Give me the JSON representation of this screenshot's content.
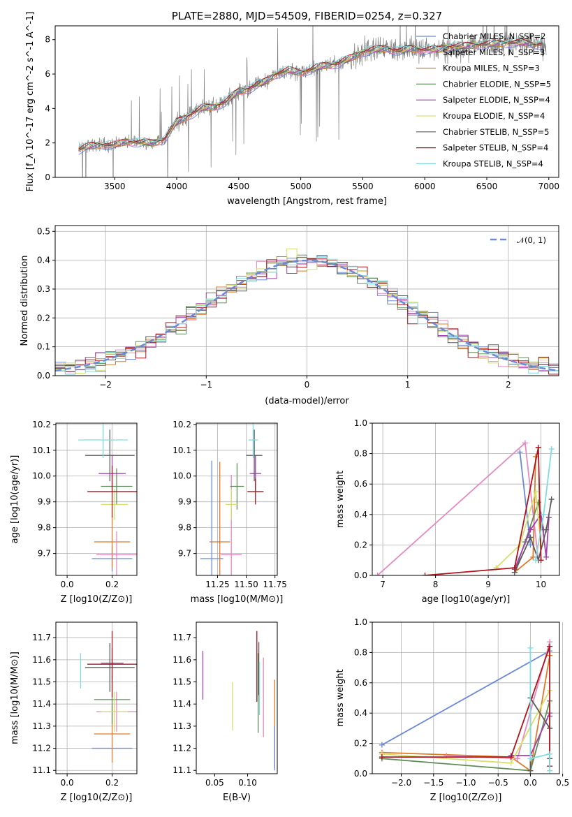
{
  "colors": [
    "#6a8ad8",
    "#e07a28",
    "#b8862e",
    "#5e8e5a",
    "#a43fb0",
    "#d6e06a",
    "#5b5b5b",
    "#b0141c",
    "#7fdde0",
    "#808080",
    "#e58ac0"
  ],
  "chart_data": [
    {
      "id": "spectrum",
      "type": "line",
      "title": "PLATE=2880, MJD=54509, FIBERID=0254, z=0.327",
      "xlabel": "wavelength [Angstrom, rest frame]",
      "ylabel": "Flux [f_λ 10^-17 erg cm^-2 s^-1 A^-1]",
      "xlim": [
        3020,
        7080
      ],
      "ylim": [
        0,
        8.8
      ],
      "xticks": [
        3500,
        4000,
        4500,
        5000,
        5500,
        6000,
        6500,
        7000
      ],
      "yticks": [
        0,
        2,
        4,
        6,
        8
      ],
      "data_color": "#808080",
      "model_anchors": {
        "x": [
          3210,
          3300,
          3400,
          3500,
          3600,
          3700,
          3800,
          3900,
          4000,
          4100,
          4200,
          4300,
          4400,
          4500,
          4600,
          4700,
          4800,
          4900,
          5000,
          5100,
          5200,
          5300,
          5400,
          5500,
          5600,
          5700,
          5800,
          5900,
          6000,
          6100,
          6200,
          6300,
          6400,
          6500,
          6600,
          6700,
          6800,
          6900
        ],
        "y": [
          1.6,
          1.8,
          1.9,
          1.85,
          2.1,
          2.0,
          2.0,
          2.2,
          3.2,
          3.6,
          4.0,
          4.1,
          4.4,
          5.0,
          5.2,
          5.5,
          6.0,
          6.2,
          6.1,
          6.3,
          6.5,
          6.6,
          6.9,
          7.3,
          7.4,
          7.5,
          7.3,
          7.5,
          7.4,
          7.4,
          7.6,
          7.6,
          7.7,
          7.7,
          7.8,
          7.8,
          7.8,
          7.7
        ]
      },
      "legend": [
        {
          "label": "Chabrier MILES, N_SSP=2",
          "color": "#6a8ad8"
        },
        {
          "label": "Salpeter MILES, N_SSP=3",
          "color": "#e58ac0"
        },
        {
          "label": "Kroupa MILES, N_SSP=3",
          "color": "#e07a28"
        },
        {
          "label": "Chabrier ELODIE, N_SSP=5",
          "color": "#5e8e5a"
        },
        {
          "label": "Salpeter ELODIE, N_SSP=4",
          "color": "#a43fb0"
        },
        {
          "label": "Kroupa ELODIE, N_SSP=4",
          "color": "#d6e06a"
        },
        {
          "label": "Chabrier STELIB, N_SSP=5",
          "color": "#5b5b5b"
        },
        {
          "label": "Salpeter STELIB, N_SSP=4",
          "color": "#b0141c"
        },
        {
          "label": "Kroupa STELIB, N_SSP=4",
          "color": "#7fdde0"
        }
      ]
    },
    {
      "id": "residuals",
      "type": "line",
      "xlabel": "(data-model)/error",
      "ylabel": "Normed distribution",
      "xlim": [
        -2.5,
        2.5
      ],
      "ylim": [
        0,
        0.52
      ],
      "xticks": [
        -2,
        -1,
        0,
        1,
        2
      ],
      "yticks": [
        0.0,
        0.1,
        0.2,
        0.3,
        0.4,
        0.5
      ],
      "legend_label": "𝒩(0, 1)",
      "gaussian_color": "#6a8ad8",
      "bin_width": 0.1
    },
    {
      "id": "age_vs_Z",
      "type": "scatter",
      "xlabel": "Z [log10(Z/Z⊙)]",
      "ylabel": "age  [log10(age/yr)]",
      "xlim": [
        -0.05,
        0.31
      ],
      "ylim": [
        9.615,
        10.205
      ],
      "xticks": [
        0.0,
        0.2
      ],
      "yticks": [
        9.7,
        9.8,
        9.9,
        10.0,
        10.1,
        10.2
      ],
      "points": [
        {
          "x": 0.2,
          "y": 9.68,
          "xerr": 0.09,
          "yerr": 0.05,
          "color": "#6a8ad8"
        },
        {
          "x": 0.2,
          "y": 9.745,
          "xerr": 0.08,
          "yerr": 0.1,
          "color": "#e07a28"
        },
        {
          "x": 0.22,
          "y": 9.695,
          "xerr": 0.09,
          "yerr": 0.09,
          "color": "#e58ac0"
        },
        {
          "x": 0.22,
          "y": 9.96,
          "xerr": 0.07,
          "yerr": 0.07,
          "color": "#5e8e5a"
        },
        {
          "x": 0.2,
          "y": 10.01,
          "xerr": 0.06,
          "yerr": 0.07,
          "color": "#a43fb0"
        },
        {
          "x": 0.21,
          "y": 9.89,
          "xerr": 0.06,
          "yerr": 0.06,
          "color": "#d6e06a"
        },
        {
          "x": 0.19,
          "y": 10.08,
          "xerr": 0.11,
          "yerr": 0.1,
          "color": "#5b5b5b"
        },
        {
          "x": 0.2,
          "y": 9.94,
          "xerr": 0.11,
          "yerr": 0.1,
          "color": "#b0141c"
        },
        {
          "x": 0.16,
          "y": 10.14,
          "xerr": 0.11,
          "yerr": 0.07,
          "color": "#7fdde0"
        }
      ]
    },
    {
      "id": "age_vs_mass",
      "type": "scatter",
      "xlabel": "mass [log10(M/M⊙)]",
      "xlim": [
        11.065,
        11.77
      ],
      "ylim": [
        9.615,
        10.205
      ],
      "xticks": [
        11.25,
        11.5,
        11.75
      ],
      "yticks": [
        9.7,
        9.8,
        9.9,
        10.0,
        10.1,
        10.2
      ],
      "points": [
        {
          "x": 11.2,
          "y": 9.68,
          "xerr": 0.1,
          "yerr": 0.38,
          "color": "#6a8ad8"
        },
        {
          "x": 11.27,
          "y": 9.745,
          "xerr": 0.09,
          "yerr": 0.31,
          "color": "#e07a28"
        },
        {
          "x": 11.37,
          "y": 9.695,
          "xerr": 0.09,
          "yerr": 0.31,
          "color": "#e58ac0"
        },
        {
          "x": 11.42,
          "y": 9.96,
          "xerr": 0.06,
          "yerr": 0.09,
          "color": "#5e8e5a"
        },
        {
          "x": 11.58,
          "y": 10.01,
          "xerr": 0.05,
          "yerr": 0.07,
          "color": "#a43fb0"
        },
        {
          "x": 11.37,
          "y": 9.89,
          "xerr": 0.05,
          "yerr": 0.06,
          "color": "#d6e06a"
        },
        {
          "x": 11.57,
          "y": 10.08,
          "xerr": 0.07,
          "yerr": 0.1,
          "color": "#5b5b5b"
        },
        {
          "x": 11.58,
          "y": 9.94,
          "xerr": 0.07,
          "yerr": 0.05,
          "color": "#b0141c"
        },
        {
          "x": 11.56,
          "y": 10.14,
          "xerr": 0.04,
          "yerr": 0.07,
          "color": "#7fdde0"
        }
      ]
    },
    {
      "id": "weight_vs_age",
      "type": "line",
      "xlabel": "age  [log10(age/yr)]",
      "ylabel": "mass weight",
      "xlim": [
        6.8,
        10.35
      ],
      "ylim": [
        0,
        1.0
      ],
      "xticks": [
        7,
        8,
        9,
        10
      ],
      "yticks": [
        0.0,
        0.2,
        0.4,
        0.6,
        0.8,
        1.0
      ],
      "series": [
        {
          "color": "#6a8ad8",
          "x": [
            9.6,
            9.8
          ],
          "y": [
            0.81,
            0.2
          ]
        },
        {
          "color": "#e07a28",
          "x": [
            9.5,
            9.85,
            9.9
          ],
          "y": [
            0.02,
            0.12,
            0.78
          ]
        },
        {
          "color": "#e58ac0",
          "x": [
            6.9,
            9.7,
            9.95
          ],
          "y": [
            0.0,
            0.87,
            0.1
          ]
        },
        {
          "color": "#5e8e5a",
          "x": [
            9.5,
            9.7,
            9.95,
            10.05
          ],
          "y": [
            0.02,
            0.22,
            0.48,
            0.3
          ]
        },
        {
          "color": "#a43fb0",
          "x": [
            9.5,
            9.8,
            10.0,
            10.1,
            10.15
          ],
          "y": [
            0.04,
            0.3,
            0.4,
            0.12,
            0.38
          ]
        },
        {
          "color": "#d6e06a",
          "x": [
            9.15,
            9.6,
            9.9,
            10.0
          ],
          "y": [
            0.05,
            0.2,
            0.55,
            0.2
          ]
        },
        {
          "color": "#5b5b5b",
          "x": [
            9.5,
            9.8,
            9.95,
            10.1,
            10.2
          ],
          "y": [
            0.02,
            0.25,
            0.1,
            0.3,
            0.5
          ]
        },
        {
          "color": "#b0141c",
          "x": [
            7.8,
            9.5,
            9.95,
            10.0
          ],
          "y": [
            0.0,
            0.05,
            0.84,
            0.1
          ]
        },
        {
          "color": "#7fdde0",
          "x": [
            9.9,
            10.05,
            10.2
          ],
          "y": [
            0.1,
            0.4,
            0.83
          ]
        }
      ]
    },
    {
      "id": "mass_vs_Z",
      "type": "scatter",
      "xlabel": "Z [log10(Z/Z⊙)]",
      "ylabel": "mass [log10(M/M⊙)]",
      "xlim": [
        -0.05,
        0.31
      ],
      "ylim": [
        11.085,
        11.77
      ],
      "xticks": [
        0.0,
        0.2
      ],
      "yticks": [
        11.1,
        11.2,
        11.3,
        11.4,
        11.5,
        11.6,
        11.7
      ],
      "points": [
        {
          "x": 0.2,
          "y": 11.2,
          "xerr": 0.09,
          "yerr": 0.0,
          "color": "#6a8ad8"
        },
        {
          "x": 0.2,
          "y": 11.265,
          "xerr": 0.08,
          "yerr": 0.13,
          "color": "#e07a28"
        },
        {
          "x": 0.22,
          "y": 11.365,
          "xerr": 0.09,
          "yerr": 0.09,
          "color": "#e58ac0"
        },
        {
          "x": 0.2,
          "y": 11.42,
          "xerr": 0.08,
          "yerr": 0.11,
          "color": "#5e8e5a"
        },
        {
          "x": 0.2,
          "y": 11.585,
          "xerr": 0.05,
          "yerr": 0.07,
          "color": "#a43fb0"
        },
        {
          "x": 0.21,
          "y": 11.365,
          "xerr": 0.06,
          "yerr": 0.09,
          "color": "#d6e06a"
        },
        {
          "x": 0.19,
          "y": 11.565,
          "xerr": 0.11,
          "yerr": 0.11,
          "color": "#5b5b5b"
        },
        {
          "x": 0.2,
          "y": 11.58,
          "xerr": 0.11,
          "yerr": 0.15,
          "color": "#b0141c"
        },
        {
          "x": 0.06,
          "y": 11.55,
          "xerr": 0.0,
          "yerr": 0.08,
          "color": "#7fdde0"
        }
      ]
    },
    {
      "id": "mass_vs_ebv",
      "type": "scatter",
      "xlabel": "E(B-V)",
      "xlim": [
        0.022,
        0.145
      ],
      "ylim": [
        11.085,
        11.77
      ],
      "xticks": [
        0.05,
        0.1
      ],
      "yticks": [
        11.1,
        11.2,
        11.3,
        11.4,
        11.5,
        11.6,
        11.7
      ],
      "points": [
        {
          "x": 0.141,
          "y": 11.31,
          "xerr": 0,
          "yerr": 0.2,
          "color": "#e07a28"
        },
        {
          "x": 0.141,
          "y": 11.2,
          "xerr": 0,
          "yerr": 0.1,
          "color": "#6a8ad8"
        },
        {
          "x": 0.124,
          "y": 11.43,
          "xerr": 0,
          "yerr": 0.18,
          "color": "#e58ac0"
        },
        {
          "x": 0.116,
          "y": 11.45,
          "xerr": 0,
          "yerr": 0.18,
          "color": "#5e8e5a"
        },
        {
          "x": 0.032,
          "y": 11.53,
          "xerr": 0,
          "yerr": 0.11,
          "color": "#a43fb0"
        },
        {
          "x": 0.077,
          "y": 11.39,
          "xerr": 0,
          "yerr": 0.11,
          "color": "#d6e06a"
        },
        {
          "x": 0.117,
          "y": 11.56,
          "xerr": 0,
          "yerr": 0.12,
          "color": "#5b5b5b"
        },
        {
          "x": 0.114,
          "y": 11.57,
          "xerr": 0,
          "yerr": 0.16,
          "color": "#b0141c"
        },
        {
          "x": 0.118,
          "y": 11.47,
          "xerr": 0,
          "yerr": 0.12,
          "color": "#7fdde0"
        }
      ]
    },
    {
      "id": "weight_vs_Z",
      "type": "line",
      "xlabel": "Z [log10(Z/Z⊙)]",
      "ylabel": "mass weight",
      "xlim": [
        -2.45,
        0.45
      ],
      "ylim": [
        0,
        1.0
      ],
      "xticks": [
        -2.0,
        -1.5,
        -1.0,
        -0.5,
        0.0,
        0.5
      ],
      "yticks": [
        0.0,
        0.2,
        0.4,
        0.6,
        0.8,
        1.0
      ],
      "series": [
        {
          "color": "#6a8ad8",
          "x": [
            -2.3,
            0.3
          ],
          "y": [
            0.19,
            0.81
          ]
        },
        {
          "color": "#e07a28",
          "x": [
            -2.3,
            -0.3,
            0.0,
            0.3
          ],
          "y": [
            0.14,
            0.11,
            0.02,
            0.78
          ]
        },
        {
          "color": "#e58ac0",
          "x": [
            -1.3,
            -0.2,
            0.3
          ],
          "y": [
            0.12,
            0.1,
            0.87
          ]
        },
        {
          "color": "#5e8e5a",
          "x": [
            -2.3,
            0.0,
            0.3,
            0.3
          ],
          "y": [
            0.1,
            0.02,
            0.48,
            0.3
          ]
        },
        {
          "color": "#a43fb0",
          "x": [
            -0.3,
            0.0,
            0.3,
            0.3
          ],
          "y": [
            0.12,
            0.12,
            0.4,
            0.38
          ]
        },
        {
          "color": "#d6e06a",
          "x": [
            -2.3,
            -0.3,
            0.3
          ],
          "y": [
            0.13,
            0.07,
            0.55
          ]
        },
        {
          "color": "#5b5b5b",
          "x": [
            0.0,
            0.0,
            0.3,
            0.3
          ],
          "y": [
            0.02,
            0.5,
            0.3,
            0.1
          ]
        },
        {
          "color": "#b0141c",
          "x": [
            -2.3,
            -0.3,
            0.3,
            0.3
          ],
          "y": [
            0.11,
            0.11,
            0.84,
            0.05
          ]
        },
        {
          "color": "#7fdde0",
          "x": [
            0.0,
            0.0,
            0.3,
            0.3
          ],
          "y": [
            0.83,
            0.1,
            0.13,
            0.02
          ]
        }
      ]
    }
  ]
}
